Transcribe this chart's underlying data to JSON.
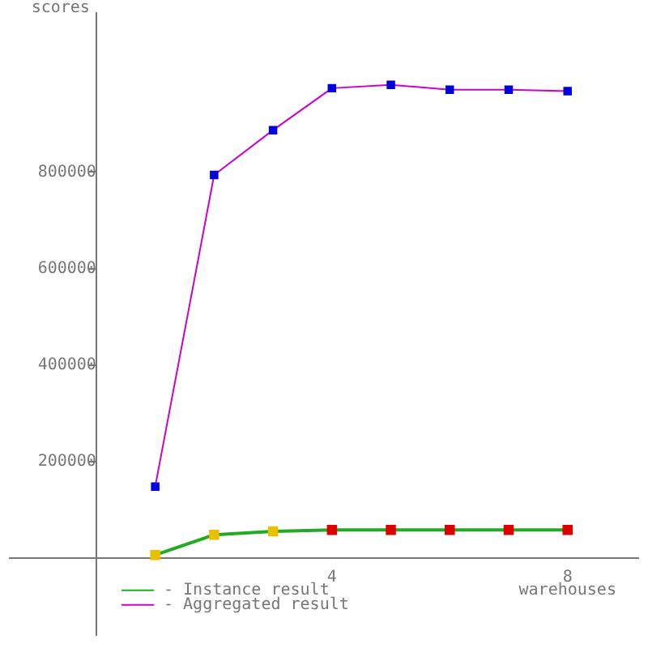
{
  "chart_data": {
    "type": "line",
    "xlabel": "warehouses",
    "ylabel": "scores",
    "x": [
      1,
      2,
      3,
      4,
      5,
      6,
      7,
      8
    ],
    "series": [
      {
        "name": "- Instance result",
        "color": "#22aa22",
        "colors": [
          "#e8c000",
          "#e8c000",
          "#e8c000",
          "#dd0000",
          "#dd0000",
          "#dd0000",
          "#dd0000",
          "#dd0000"
        ],
        "values": [
          6000,
          48000,
          55000,
          58000,
          58000,
          58000,
          58000,
          58000
        ]
      },
      {
        "name": "- Aggregated result",
        "color": "#cc00cc",
        "colors": [
          "#0000dd",
          "#0000dd",
          "#0000dd",
          "#0000dd",
          "#0000dd",
          "#0000dd",
          "#0000dd",
          "#0000dd"
        ],
        "values": [
          148000,
          794000,
          887000,
          974000,
          981000,
          971000,
          971000,
          968000
        ]
      }
    ],
    "xlim": [
      -1.47,
      9.2
    ],
    "ylim": [
      -160000,
      1130000
    ],
    "xticks": [
      4,
      8
    ],
    "yticks": [
      200000,
      400000,
      600000,
      800000
    ],
    "grid": false,
    "legend": "bottom left",
    "marker": "square",
    "line_style": "solid"
  }
}
